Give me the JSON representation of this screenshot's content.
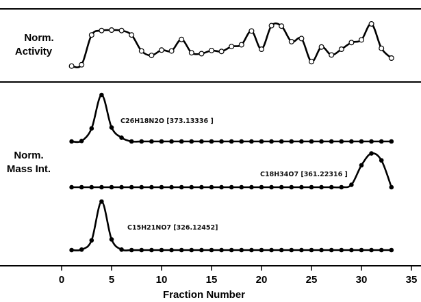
{
  "chart_data": {
    "type": "line",
    "xlabel": "Fraction Number",
    "xlim": [
      0,
      35
    ],
    "x_ticks": [
      0,
      5,
      10,
      15,
      20,
      25,
      30,
      35
    ],
    "x_tick_labels": [
      "0",
      "5",
      "10",
      "15",
      "20",
      "25",
      "30",
      "35"
    ],
    "x": [
      1,
      2,
      3,
      4,
      5,
      6,
      7,
      8,
      9,
      10,
      11,
      12,
      13,
      14,
      15,
      16,
      17,
      18,
      19,
      20,
      21,
      22,
      23,
      24,
      25,
      26,
      27,
      28,
      29,
      30,
      31,
      32,
      33
    ],
    "panels": [
      {
        "name": "activity",
        "ylabel": [
          "Norm.",
          "Activity"
        ],
        "series": [
          {
            "name": "Norm. Activity",
            "marker": "open-circle",
            "values": [
              0.02,
              0.05,
              0.72,
              0.82,
              0.83,
              0.82,
              0.72,
              0.36,
              0.26,
              0.38,
              0.36,
              0.62,
              0.32,
              0.3,
              0.37,
              0.35,
              0.46,
              0.5,
              0.81,
              0.4,
              0.93,
              0.92,
              0.57,
              0.64,
              0.12,
              0.45,
              0.27,
              0.4,
              0.55,
              0.61,
              0.97,
              0.42,
              0.2
            ]
          }
        ]
      },
      {
        "name": "mass-intensity",
        "ylabel": [
          "Norm.",
          "Mass Int."
        ],
        "series": [
          {
            "name": "C26H18N2O [373.13336 ]",
            "marker": "filled-circle",
            "values": [
              0.0,
              0.01,
              0.28,
              1.0,
              0.3,
              0.08,
              0.0,
              0.0,
              0.0,
              0.0,
              0.0,
              0.0,
              0.0,
              0.0,
              0.0,
              0.0,
              0.0,
              0.0,
              0.0,
              0.0,
              0.0,
              0.0,
              0.0,
              0.0,
              0.0,
              0.0,
              0.0,
              0.0,
              0.0,
              0.0,
              0.0,
              0.0,
              0.0
            ]
          },
          {
            "name": "C18H34O7 [361.22316 ]",
            "marker": "filled-circle",
            "values": [
              0.0,
              0.0,
              0.0,
              0.0,
              0.0,
              0.0,
              0.0,
              0.0,
              0.0,
              0.0,
              0.0,
              0.0,
              0.0,
              0.0,
              0.0,
              0.0,
              0.0,
              0.0,
              0.0,
              0.0,
              0.0,
              0.0,
              0.0,
              0.0,
              0.0,
              0.0,
              0.0,
              0.0,
              0.07,
              0.63,
              0.97,
              0.77,
              0.0
            ]
          },
          {
            "name": "C15H21NO7 [326.12452]",
            "marker": "filled-circle",
            "values": [
              0.0,
              0.01,
              0.2,
              1.0,
              0.22,
              0.01,
              0.0,
              0.0,
              0.0,
              0.0,
              0.0,
              0.0,
              0.0,
              0.0,
              0.0,
              0.0,
              0.0,
              0.0,
              0.0,
              0.0,
              0.0,
              0.0,
              0.0,
              0.0,
              0.0,
              0.0,
              0.0,
              0.0,
              0.0,
              0.0,
              0.0,
              0.0,
              0.0
            ]
          }
        ]
      }
    ]
  }
}
